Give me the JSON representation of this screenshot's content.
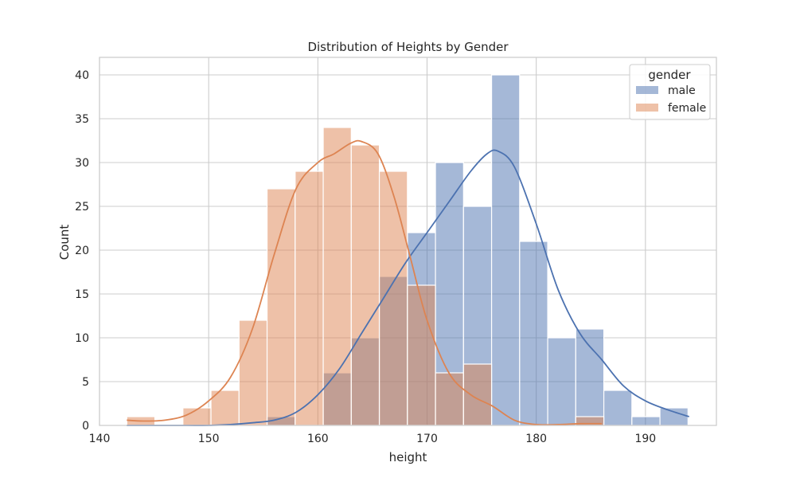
{
  "chart_data": {
    "type": "histogram",
    "title": "Distribution of Heights by Gender",
    "xlabel": "height",
    "ylabel": "Count",
    "xlim": [
      140,
      196.5
    ],
    "ylim": [
      0,
      42
    ],
    "xticks": [
      140,
      150,
      160,
      170,
      180,
      190
    ],
    "yticks": [
      0,
      5,
      10,
      15,
      20,
      25,
      30,
      35,
      40
    ],
    "grid": true,
    "legend": {
      "title": "gender",
      "placement": "top-right"
    },
    "bin_edges": [
      142.5,
      145.07,
      147.64,
      150.21,
      152.78,
      155.35,
      157.92,
      160.49,
      163.06,
      165.63,
      168.2,
      170.77,
      173.34,
      175.91,
      178.48,
      181.05,
      183.62,
      186.19,
      188.76,
      191.33,
      193.9
    ],
    "series": [
      {
        "name": "male",
        "color": "#4c72b0",
        "values": [
          0,
          0,
          0,
          0,
          0,
          1,
          0,
          6,
          10,
          17,
          22,
          30,
          25,
          40,
          21,
          10,
          11,
          4,
          1,
          2
        ],
        "kde": {
          "x": [
            142.5,
            145,
            148,
            150,
            152,
            154,
            156,
            158,
            160,
            162,
            164,
            166,
            168,
            170,
            172,
            174,
            175.5,
            176.5,
            178,
            180,
            182,
            184,
            186,
            188,
            190,
            192,
            194
          ],
          "y": [
            0,
            0,
            0,
            0,
            0.1,
            0.3,
            0.6,
            1.5,
            3.5,
            6.5,
            10.5,
            14.5,
            18.5,
            22,
            25.5,
            29,
            31,
            31.3,
            29.5,
            23,
            15.5,
            10.5,
            7.5,
            4.5,
            2.8,
            1.8,
            1.0
          ]
        }
      },
      {
        "name": "female",
        "color": "#dd8452",
        "values": [
          1,
          0,
          2,
          4,
          12,
          27,
          29,
          34,
          32,
          29,
          16,
          6,
          7,
          0,
          0,
          0,
          1,
          0,
          0,
          0
        ],
        "kde": {
          "x": [
            142.5,
            144,
            146,
            148,
            150,
            152,
            154,
            156,
            158,
            160,
            161.5,
            163,
            164,
            165.5,
            167,
            168.5,
            170,
            172,
            174,
            176,
            178,
            180,
            182,
            184,
            186
          ],
          "y": [
            0.6,
            0.5,
            0.6,
            1.2,
            2.8,
            5.5,
            11,
            19.5,
            27,
            30,
            31,
            32.2,
            32.4,
            31,
            26,
            19,
            12,
            6,
            3.5,
            2.2,
            0.6,
            0.1,
            0.1,
            0.2,
            0.2
          ]
        }
      }
    ]
  }
}
